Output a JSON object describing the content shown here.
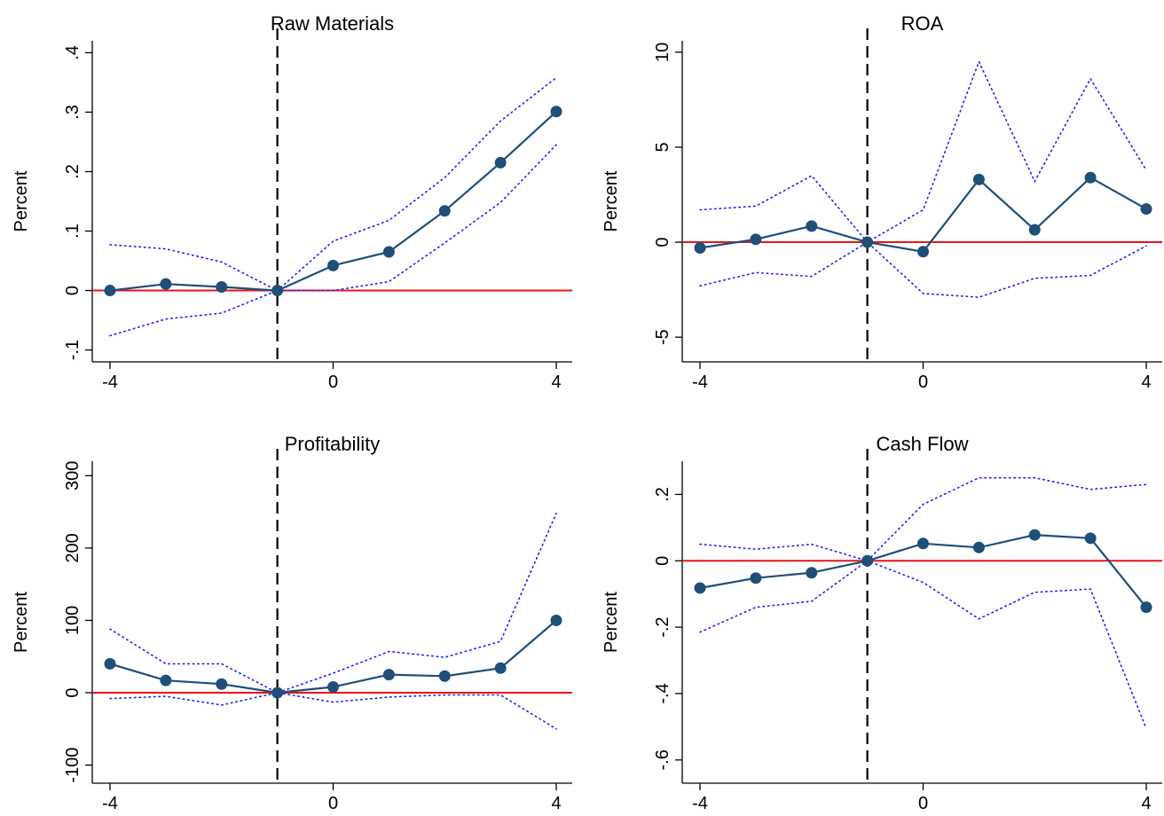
{
  "colors": {
    "point_line": "#1f4e79",
    "ci": "#1f1fff",
    "zero": "#e8141a",
    "event": "#000000"
  },
  "chart_data": [
    {
      "type": "line",
      "title": "Raw Materials",
      "xlabel": "",
      "ylabel": "Percent",
      "xlim": [
        -4,
        4
      ],
      "ylim": [
        -0.12,
        0.42
      ],
      "x": [
        -4,
        -3,
        -2,
        -1,
        0,
        1,
        2,
        3,
        4
      ],
      "xticks": [
        -4,
        0,
        4
      ],
      "xtick_labels": [
        "-4",
        "0",
        "4"
      ],
      "yticks": [
        -0.1,
        0,
        0.1,
        0.2,
        0.3,
        0.4
      ],
      "ytick_labels": [
        "-.1",
        "0",
        ".1",
        ".2",
        ".3",
        ".4"
      ],
      "event_x": -1,
      "zero_line": 0,
      "series": [
        {
          "role": "estimate",
          "values": [
            0.0,
            0.011,
            0.006,
            0.0,
            0.042,
            0.065,
            0.134,
            0.215,
            0.301
          ]
        },
        {
          "role": "ci_upper",
          "values": [
            0.077,
            0.07,
            0.048,
            0.0,
            0.083,
            0.118,
            0.19,
            0.285,
            0.358
          ]
        },
        {
          "role": "ci_lower",
          "values": [
            -0.076,
            -0.048,
            -0.038,
            0.0,
            0.0,
            0.015,
            0.08,
            0.148,
            0.245
          ]
        }
      ]
    },
    {
      "type": "line",
      "title": "ROA",
      "xlabel": "",
      "ylabel": "Percent",
      "xlim": [
        -4,
        4
      ],
      "ylim": [
        -6.3,
        10.6
      ],
      "x": [
        -4,
        -3,
        -2,
        -1,
        0,
        1,
        2,
        3,
        4
      ],
      "xticks": [
        -4,
        0,
        4
      ],
      "xtick_labels": [
        "-4",
        "0",
        "4"
      ],
      "yticks": [
        -5,
        0,
        5,
        10
      ],
      "ytick_labels": [
        "-5",
        "0",
        "5",
        "10"
      ],
      "event_x": -1,
      "zero_line": 0,
      "series": [
        {
          "role": "estimate",
          "values": [
            -0.3,
            0.15,
            0.85,
            0.0,
            -0.5,
            3.3,
            0.65,
            3.4,
            1.75
          ]
        },
        {
          "role": "ci_upper",
          "values": [
            1.7,
            1.9,
            3.5,
            0.0,
            1.7,
            9.5,
            3.2,
            8.6,
            3.8
          ]
        },
        {
          "role": "ci_lower",
          "values": [
            -2.3,
            -1.6,
            -1.8,
            0.0,
            -2.7,
            -2.9,
            -1.9,
            -1.75,
            -0.2
          ]
        }
      ]
    },
    {
      "type": "line",
      "title": "Profitability",
      "xlabel": "",
      "ylabel": "Percent",
      "xlim": [
        -4,
        4
      ],
      "ylim": [
        -125,
        320
      ],
      "x": [
        -4,
        -3,
        -2,
        -1,
        0,
        1,
        2,
        3,
        4
      ],
      "xticks": [
        -4,
        0,
        4
      ],
      "xtick_labels": [
        "-4",
        "0",
        "4"
      ],
      "yticks": [
        -100,
        0,
        100,
        200,
        300
      ],
      "ytick_labels": [
        "-100",
        "0",
        "100",
        "200",
        "300"
      ],
      "event_x": -1,
      "zero_line": 0,
      "series": [
        {
          "role": "estimate",
          "values": [
            40,
            17,
            12,
            0,
            8,
            25,
            23,
            34,
            100
          ]
        },
        {
          "role": "ci_upper",
          "values": [
            88,
            40,
            40,
            0,
            27,
            57,
            49,
            71,
            248
          ]
        },
        {
          "role": "ci_lower",
          "values": [
            -8,
            -5,
            -17,
            0,
            -13,
            -6,
            -3,
            -3,
            -50
          ]
        }
      ]
    },
    {
      "type": "line",
      "title": "Cash Flow",
      "xlabel": "",
      "ylabel": "Percent",
      "xlim": [
        -4,
        4
      ],
      "ylim": [
        -0.67,
        0.3
      ],
      "x": [
        -4,
        -3,
        -2,
        -1,
        0,
        1,
        2,
        3,
        4
      ],
      "xticks": [
        -4,
        0,
        4
      ],
      "xtick_labels": [
        "-4",
        "0",
        "4"
      ],
      "yticks": [
        -0.6,
        -0.4,
        -0.2,
        0,
        0.2
      ],
      "ytick_labels": [
        "-.6",
        "-.4",
        "-.2",
        "0",
        ".2"
      ],
      "event_x": -1,
      "zero_line": 0,
      "series": [
        {
          "role": "estimate",
          "values": [
            -0.082,
            -0.052,
            -0.036,
            0.0,
            0.052,
            0.04,
            0.078,
            0.068,
            -0.14
          ]
        },
        {
          "role": "ci_upper",
          "values": [
            0.05,
            0.035,
            0.05,
            0.0,
            0.17,
            0.25,
            0.25,
            0.215,
            0.23
          ]
        },
        {
          "role": "ci_lower",
          "values": [
            -0.215,
            -0.14,
            -0.122,
            0.0,
            -0.065,
            -0.175,
            -0.095,
            -0.085,
            -0.505
          ]
        }
      ]
    }
  ]
}
